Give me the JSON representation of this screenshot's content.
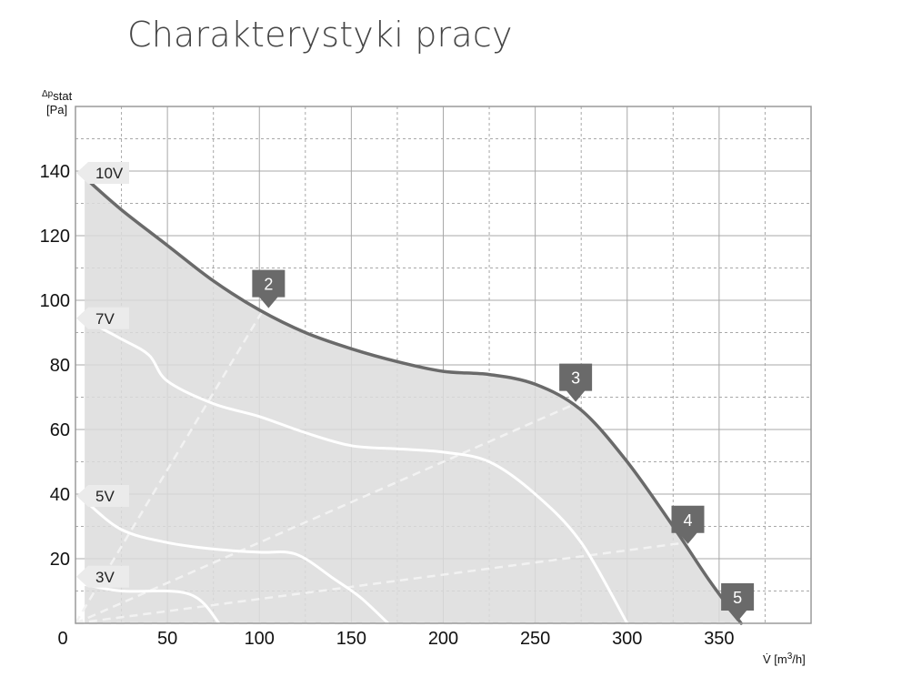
{
  "title": "Charakterystyki pracy",
  "chart_data": {
    "type": "line",
    "title": "Charakterystyki pracy",
    "xlabel": "V̇ [m³/h]",
    "ylabel": "Δp stat [Pa]",
    "xlim": [
      0,
      400
    ],
    "ylim": [
      0,
      160
    ],
    "xticks": [
      0,
      50,
      100,
      150,
      200,
      250,
      300,
      350
    ],
    "yticks": [
      20,
      40,
      60,
      80,
      100,
      120,
      140
    ],
    "grid": true,
    "ylabel_parts": {
      "main": "Δp",
      "sub": "stat",
      "unit": "[Pa]"
    },
    "xlabel_parts": {
      "main": "V̇ [m",
      "sup": "3",
      "end": "/h]"
    },
    "series": [
      {
        "name": "10V",
        "color": "#6a6a6a",
        "points": [
          [
            5,
            138
          ],
          [
            25,
            128
          ],
          [
            50,
            117
          ],
          [
            75,
            106
          ],
          [
            100,
            97
          ],
          [
            125,
            90
          ],
          [
            150,
            85
          ],
          [
            175,
            81
          ],
          [
            200,
            78
          ],
          [
            225,
            77
          ],
          [
            250,
            74
          ],
          [
            275,
            66
          ],
          [
            300,
            50
          ],
          [
            325,
            30
          ],
          [
            345,
            13
          ],
          [
            362,
            0
          ]
        ]
      },
      {
        "name": "7V",
        "color": "#ffffff",
        "points": [
          [
            5,
            94
          ],
          [
            25,
            88
          ],
          [
            40,
            83
          ],
          [
            50,
            75
          ],
          [
            75,
            68
          ],
          [
            100,
            64
          ],
          [
            125,
            59
          ],
          [
            150,
            55
          ],
          [
            175,
            54
          ],
          [
            200,
            53
          ],
          [
            225,
            50
          ],
          [
            250,
            40
          ],
          [
            275,
            25
          ],
          [
            300,
            0
          ]
        ]
      },
      {
        "name": "5V",
        "color": "#ffffff",
        "points": [
          [
            5,
            38
          ],
          [
            25,
            29
          ],
          [
            50,
            25
          ],
          [
            75,
            23
          ],
          [
            100,
            22
          ],
          [
            115,
            22
          ],
          [
            125,
            20
          ],
          [
            140,
            14
          ],
          [
            155,
            8
          ],
          [
            170,
            0
          ]
        ]
      },
      {
        "name": "3V",
        "color": "#ffffff",
        "points": [
          [
            5,
            12
          ],
          [
            25,
            10
          ],
          [
            50,
            10
          ],
          [
            62,
            9
          ],
          [
            70,
            6
          ],
          [
            78,
            0
          ]
        ]
      }
    ],
    "operating_lines": [
      {
        "label": "2",
        "color": "#f2f2f2",
        "points": [
          [
            0,
            0
          ],
          [
            102,
            97
          ]
        ]
      },
      {
        "label": "3",
        "color": "#f2f2f2",
        "points": [
          [
            0,
            0
          ],
          [
            272,
            68
          ]
        ]
      },
      {
        "label": "4",
        "color": "#f2f2f2",
        "points": [
          [
            0,
            0
          ],
          [
            332,
            25
          ]
        ]
      },
      {
        "label": "5",
        "color": "#f2f2f2",
        "points": [
          [
            0,
            0
          ],
          [
            362,
            0
          ]
        ]
      }
    ],
    "markers": [
      {
        "label": "2",
        "x": 105,
        "y": 97
      },
      {
        "label": "3",
        "x": 272,
        "y": 68
      },
      {
        "label": "4",
        "x": 333,
        "y": 24
      },
      {
        "label": "5",
        "x": 360,
        "y": 0
      }
    ],
    "speed_labels": [
      {
        "label": "10V",
        "y": 140
      },
      {
        "label": "7V",
        "y": 95
      },
      {
        "label": "5V",
        "y": 40
      },
      {
        "label": "3V",
        "y": 15
      }
    ],
    "colors": {
      "fill": "#dcdcdc",
      "grid": "#a8a8a8",
      "border": "#9a9a9a",
      "marker": "#6a6a6a",
      "speed_label_bg": "#ebebeb"
    }
  }
}
